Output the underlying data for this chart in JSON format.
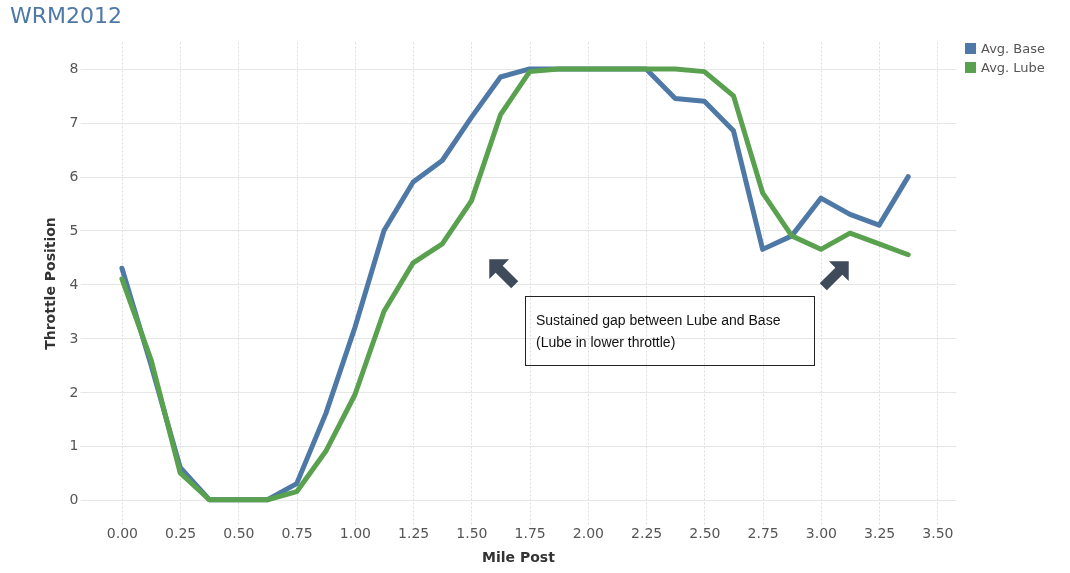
{
  "chart_data": {
    "type": "line",
    "title": "WRM2012",
    "xlabel": "Mile Post",
    "ylabel": "Throttle Position",
    "x": [
      0,
      0.125,
      0.25,
      0.375,
      0.5,
      0.625,
      0.75,
      0.875,
      1,
      1.125,
      1.25,
      1.375,
      1.5,
      1.625,
      1.75,
      1.875,
      2,
      2.125,
      2.25,
      2.375,
      2.5,
      2.625,
      2.75,
      2.875,
      3,
      3.125,
      3.25,
      3.375
    ],
    "series": [
      {
        "name": "Avg. Base",
        "color": "#4e79a7",
        "values": [
          4.3,
          2.5,
          0.6,
          0,
          0,
          0,
          0.3,
          1.6,
          3.2,
          5,
          5.9,
          6.3,
          7.1,
          7.85,
          8,
          8,
          8,
          8,
          8,
          7.45,
          7.4,
          6.85,
          4.65,
          4.9,
          5.6,
          5.3,
          5.1,
          6
        ]
      },
      {
        "name": "Avg. Lube",
        "color": "#59a14f",
        "values": [
          4.1,
          2.6,
          0.5,
          0,
          0,
          0,
          0.15,
          0.9,
          1.95,
          3.5,
          4.4,
          4.75,
          5.55,
          7.15,
          7.95,
          8,
          8,
          8,
          8,
          8,
          7.95,
          7.5,
          5.7,
          4.9,
          4.65,
          4.95,
          4.75,
          4.55
        ]
      }
    ],
    "xlim": [
      -0.18,
      3.58
    ],
    "ylim": [
      -0.45,
      8.5
    ],
    "xticks": [
      {
        "value": 0,
        "label": "0.00"
      },
      {
        "value": 0.25,
        "label": "0.25"
      },
      {
        "value": 0.5,
        "label": "0.50"
      },
      {
        "value": 0.75,
        "label": "0.75"
      },
      {
        "value": 1,
        "label": "1.00"
      },
      {
        "value": 1.25,
        "label": "1.25"
      },
      {
        "value": 1.5,
        "label": "1.50"
      },
      {
        "value": 1.75,
        "label": "1.75"
      },
      {
        "value": 2,
        "label": "2.00"
      },
      {
        "value": 2.25,
        "label": "2.25"
      },
      {
        "value": 2.5,
        "label": "2.50"
      },
      {
        "value": 2.75,
        "label": "2.75"
      },
      {
        "value": 3,
        "label": "3.00"
      },
      {
        "value": 3.25,
        "label": "3.25"
      },
      {
        "value": 3.5,
        "label": "3.50"
      }
    ],
    "yticks": [
      0,
      1,
      2,
      3,
      4,
      5,
      6,
      7,
      8
    ],
    "grid": true,
    "legend": "top right",
    "line_style": "solid",
    "annotations": [
      "Sustained gap between Lube and Base (Lube in lower throttle)"
    ]
  }
}
